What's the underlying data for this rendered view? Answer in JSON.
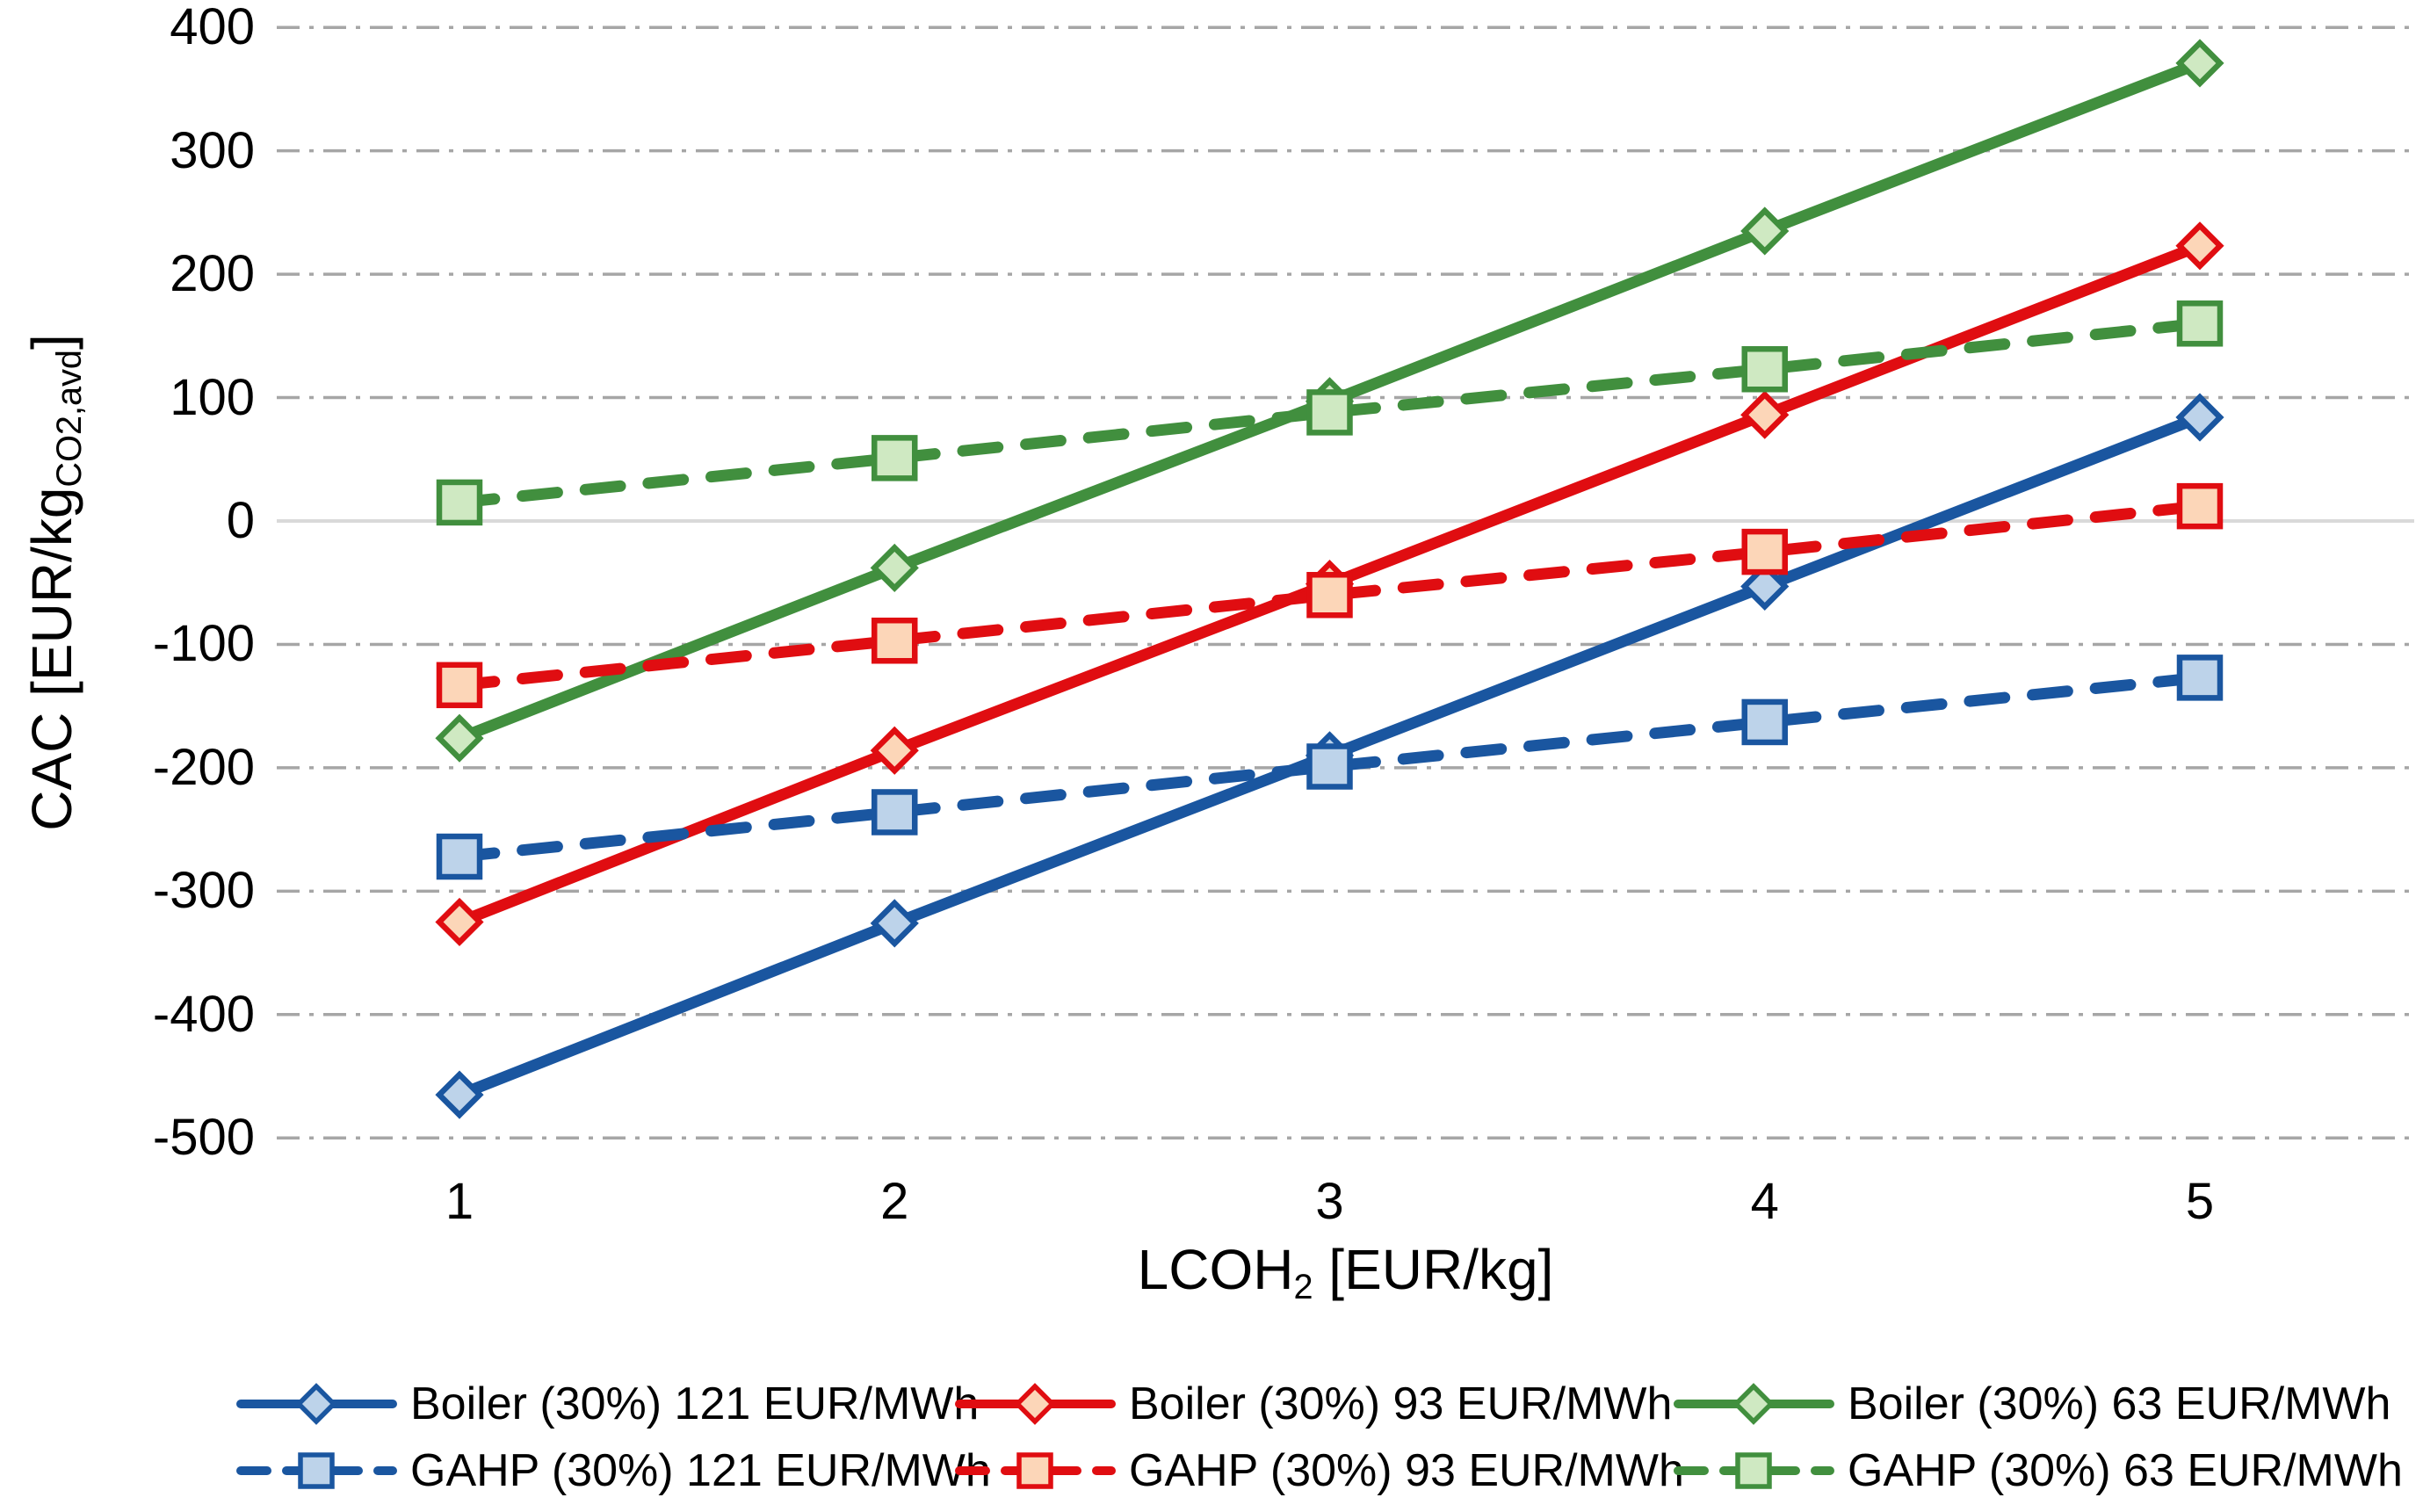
{
  "chart_data": {
    "type": "line",
    "x": [
      1,
      2,
      3,
      4,
      5
    ],
    "series": [
      {
        "name": "Boiler (30%) 121 EUR/MWh",
        "values": [
          -465,
          -326,
          -190,
          -53,
          84
        ],
        "color": "#1a56a0",
        "marker_fill": "#bdd3ea",
        "style": "solid",
        "marker": "diamond"
      },
      {
        "name": "Boiler (30%) 93 EUR/MWh",
        "values": [
          -325,
          -186,
          -51,
          86,
          223
        ],
        "color": "#e00d11",
        "marker_fill": "#fcd6b8",
        "style": "solid",
        "marker": "diamond"
      },
      {
        "name": "Boiler (30%) 63 EUR/MWh",
        "values": [
          -176,
          -38,
          97,
          235,
          371
        ],
        "color": "#418f3e",
        "marker_fill": "#cfe9c2",
        "style": "solid",
        "marker": "diamond"
      },
      {
        "name": "GAHP (30%) 121 EUR/MWh",
        "values": [
          -272,
          -236,
          -199,
          -163,
          -127
        ],
        "color": "#1a56a0",
        "marker_fill": "#bdd3ea",
        "style": "dashed",
        "marker": "square"
      },
      {
        "name": "GAHP (30%) 93 EUR/MWh",
        "values": [
          -133,
          -97,
          -60,
          -25,
          12
        ],
        "color": "#e00d11",
        "marker_fill": "#fcd6b8",
        "style": "dashed",
        "marker": "square"
      },
      {
        "name": "GAHP (30%) 63 EUR/MWh",
        "values": [
          15,
          51,
          88,
          123,
          160
        ],
        "color": "#418f3e",
        "marker_fill": "#cfe9c2",
        "style": "dashed",
        "marker": "square"
      }
    ],
    "ylim": [
      -500,
      400
    ],
    "ytick_labels": [
      "400",
      "300",
      "200",
      "100",
      "0",
      "-100",
      "-200",
      "-300",
      "-400",
      "-500"
    ],
    "ytick_values": [
      400,
      300,
      200,
      100,
      0,
      -100,
      -200,
      -300,
      -400,
      -500
    ],
    "xtick_labels": [
      "1",
      "2",
      "3",
      "4",
      "5"
    ],
    "xtick_values": [
      1,
      2,
      3,
      4,
      5
    ],
    "grid_on": true,
    "grid_color": "#a6a6a6",
    "zero_line_color": "#d9d9d9",
    "legend_position": "bottom",
    "ylabel": {
      "prefix": "CAC [EUR/kg",
      "sub": "CO2,avd",
      "suffix": "]"
    },
    "xlabel": {
      "prefix": "LCOH",
      "sub": "2",
      "suffix": " [EUR/kg]"
    }
  }
}
